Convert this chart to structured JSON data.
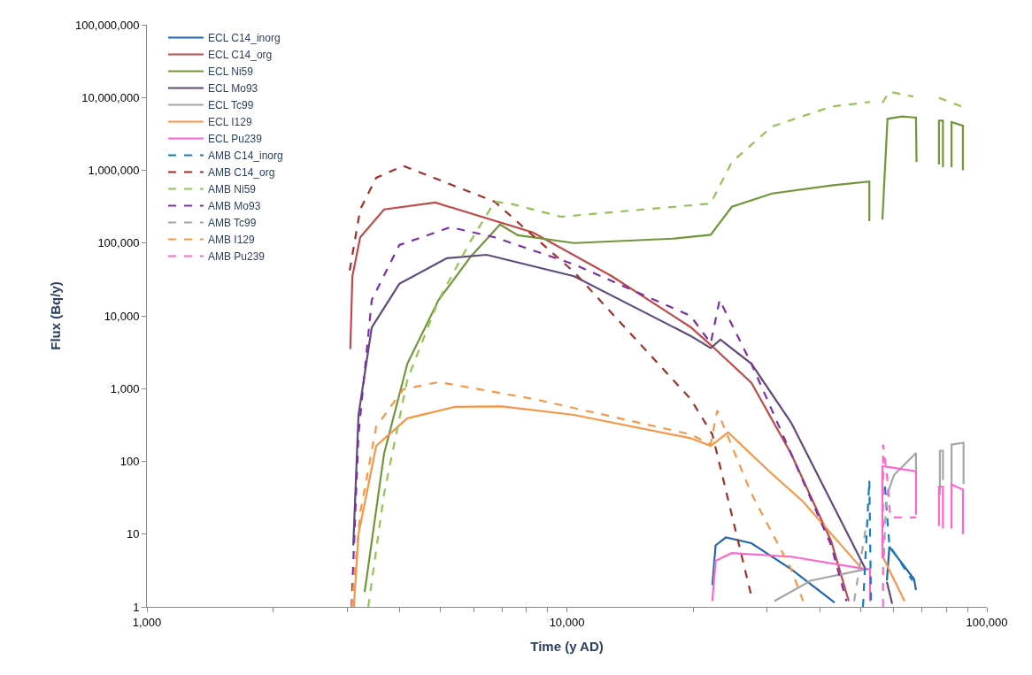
{
  "chart_data": {
    "type": "line",
    "xlabel": "Time (y AD)",
    "ylabel": "Flux (Bq/y)",
    "log": "xy",
    "legend": "top left",
    "marker": "none",
    "xlim": [
      1000,
      100000
    ],
    "xticks": [
      {
        "value": 1000,
        "label": "1,000"
      },
      {
        "value": 2000,
        "label": null
      },
      {
        "value": 3000,
        "label": null
      },
      {
        "value": 4000,
        "label": null
      },
      {
        "value": 5000,
        "label": null
      },
      {
        "value": 6000,
        "label": null
      },
      {
        "value": 7000,
        "label": null
      },
      {
        "value": 8000,
        "label": null
      },
      {
        "value": 9000,
        "label": null
      },
      {
        "value": 10000,
        "label": "10,000"
      },
      {
        "value": 20000,
        "label": null
      },
      {
        "value": 30000,
        "label": null
      },
      {
        "value": 40000,
        "label": null
      },
      {
        "value": 50000,
        "label": null
      },
      {
        "value": 60000,
        "label": null
      },
      {
        "value": 70000,
        "label": null
      },
      {
        "value": 80000,
        "label": null
      },
      {
        "value": 90000,
        "label": null
      },
      {
        "value": 100000,
        "label": "100,000"
      }
    ],
    "ylim": [
      1,
      100000000
    ],
    "yticks": [
      1,
      10,
      {
        "value": 100,
        "label": "100"
      },
      {
        "value": 1000,
        "label": "1,000"
      },
      {
        "value": 10000,
        "label": "10,000"
      },
      {
        "value": 100000,
        "label": "100,000"
      },
      {
        "value": 1000000,
        "label": "1,000,000"
      },
      {
        "value": 10000000,
        "label": "10,000,000"
      },
      {
        "value": 100000000,
        "label": "100,000,000"
      }
    ],
    "series": [
      {
        "name": "ECL C14_inorg",
        "color": "#2467a6",
        "line_style": "solid",
        "x": [
          22200,
          22600,
          23900,
          27500,
          34200,
          43400,
          null,
          57800,
          58600,
          67100,
          67800
        ],
        "values": [
          2,
          7,
          9,
          7.5,
          3.3,
          1.15,
          null,
          2.3,
          6.7,
          2.4,
          1.7
        ]
      },
      {
        "name": "ECL C14_org",
        "color": "#be4b48",
        "line_style": "solid",
        "x": [
          3050,
          3085,
          3220,
          3670,
          4860,
          8300,
          12800,
          19700,
          22200,
          27500,
          34200,
          42600,
          46900
        ],
        "values": [
          3500,
          35000,
          120000,
          290000,
          360000,
          140000,
          35000,
          7000,
          3800,
          1200,
          127,
          8,
          1.2
        ]
      },
      {
        "name": "ECL Ni59",
        "color": "#70963a",
        "line_style": "solid",
        "x": [
          3300,
          3670,
          4170,
          4950,
          5900,
          6930,
          7640,
          10400,
          17900,
          22000,
          24700,
          30800,
          42600,
          52500,
          52500,
          null,
          56400,
          58000,
          62800,
          67800,
          68000,
          null,
          76900,
          76900,
          78600,
          78600,
          null,
          82400,
          82400,
          87700,
          87700
        ],
        "values": [
          1.6,
          127,
          2200,
          16500,
          65000,
          180000,
          128000,
          100000,
          115000,
          130000,
          315000,
          480000,
          620000,
          700000,
          200000,
          null,
          210000,
          5100000,
          5500000,
          5300000,
          1300000,
          null,
          1200000,
          4800000,
          4800000,
          1100000,
          null,
          1100000,
          4600000,
          4100000,
          1000000
        ]
      },
      {
        "name": "ECL Mo93",
        "color": "#604a7b",
        "line_style": "solid",
        "x": [
          3100,
          3190,
          3430,
          3990,
          5180,
          6440,
          10400,
          19700,
          22000,
          23200,
          27500,
          34200,
          42600,
          51400,
          null,
          57800,
          59500
        ],
        "values": [
          7,
          435,
          6900,
          27500,
          62000,
          69000,
          35000,
          5300,
          3600,
          4700,
          2200,
          340,
          28,
          3.3,
          null,
          2.2,
          1.1
        ]
      },
      {
        "name": "ECL Tc99",
        "color": "#a6a6a6",
        "line_style": "solid",
        "x": [
          31200,
          38100,
          51600,
          null,
          57800,
          60100,
          67800,
          67800,
          null,
          77300,
          77300,
          78600,
          78600,
          null,
          82400,
          82400,
          88000,
          88000
        ],
        "values": [
          1.2,
          2.3,
          3.3,
          null,
          34,
          65,
          130,
          75,
          null,
          35,
          140,
          140,
          55,
          null,
          49,
          170,
          180,
          49
        ]
      },
      {
        "name": "ECL I129",
        "color": "#f79646",
        "line_style": "solid",
        "x": [
          3110,
          3190,
          3515,
          4170,
          5410,
          7010,
          10400,
          19700,
          22000,
          24200,
          30800,
          36500,
          50500,
          null,
          56600,
          63700
        ],
        "values": [
          1,
          10,
          163,
          390,
          560,
          570,
          435,
          208,
          163,
          250,
          67,
          28,
          3.3,
          null,
          4.8,
          1.2
        ]
      },
      {
        "name": "ECL Pu239",
        "color": "#ff66cc",
        "line_style": "solid",
        "x": [
          22200,
          22600,
          24700,
          34200,
          51600,
          52700,
          52700,
          null,
          56400,
          56400,
          67800,
          67800,
          null,
          76900,
          76900,
          78600,
          78600,
          null,
          82400,
          82400,
          87700,
          87700
        ],
        "values": [
          1.2,
          4.3,
          5.5,
          4.9,
          3.3,
          3.3,
          1.2,
          null,
          4.8,
          86,
          73,
          18.5,
          null,
          13,
          45,
          45,
          12,
          null,
          12,
          48,
          41,
          10
        ]
      },
      {
        "name": "AMB C14_inorg",
        "color": "#0e7ec6",
        "line_style": "dashed",
        "x": [
          50700,
          52500,
          53000,
          null,
          57200,
          58600,
          66500
        ],
        "values": [
          1,
          55,
          1,
          null,
          45,
          7,
          2.3
        ]
      },
      {
        "name": "AMB C14_org",
        "color": "#a0302a",
        "line_style": "dashed",
        "x": [
          3040,
          3220,
          3515,
          4080,
          6730,
          10400,
          19700,
          22200,
          27500
        ],
        "values": [
          42000,
          290000,
          790000,
          1150000,
          370000,
          40000,
          720,
          235,
          1.4
        ]
      },
      {
        "name": "AMB Ni59",
        "color": "#92c353",
        "line_style": "dashed",
        "x": [
          3365,
          3670,
          4170,
          4950,
          5900,
          6730,
          7310,
          9680,
          19700,
          22000,
          24700,
          30800,
          42600,
          52700,
          null,
          56400,
          58600,
          66800,
          null,
          76900,
          87700
        ],
        "values": [
          1,
          36,
          1330,
          16500,
          107000,
          370000,
          350000,
          230000,
          330000,
          350000,
          1300000,
          4000000,
          7500000,
          8700000,
          null,
          8500000,
          12000000,
          10300000,
          null,
          9900000,
          7400000
        ]
      },
      {
        "name": "AMB Mo93",
        "color": "#7c30a8",
        "line_style": "dashed",
        "x": [
          3070,
          3190,
          3430,
          3990,
          5280,
          6730,
          10400,
          19700,
          22000,
          23100,
          27500,
          34200,
          42600,
          46300
        ],
        "values": [
          1,
          235,
          16500,
          94000,
          165000,
          120000,
          51000,
          10000,
          4200,
          16500,
          2200,
          127,
          7,
          1.2
        ]
      },
      {
        "name": "AMB Tc99",
        "color": "#a6a6a6",
        "line_style": "dashed",
        "x": [
          48300,
          51600,
          null,
          56900,
          57300,
          57700
        ],
        "values": [
          1.2,
          13,
          null,
          5,
          15,
          28
        ]
      },
      {
        "name": "AMB I129",
        "color": "#f79646",
        "line_style": "dashed",
        "x": [
          3070,
          3220,
          3515,
          4080,
          4950,
          8340,
          19700,
          22000,
          22800,
          27500,
          34200,
          36500
        ],
        "values": [
          1,
          19.5,
          300,
          980,
          1230,
          720,
          235,
          172,
          500,
          36,
          3.3,
          1.2
        ]
      },
      {
        "name": "AMB Pu239",
        "color": "#ff66cc",
        "line_style": "dashed",
        "x": [
          56600,
          56600,
          57900,
          58900,
          67800
        ],
        "values": [
          1,
          170,
          60,
          17,
          17
        ]
      }
    ]
  }
}
